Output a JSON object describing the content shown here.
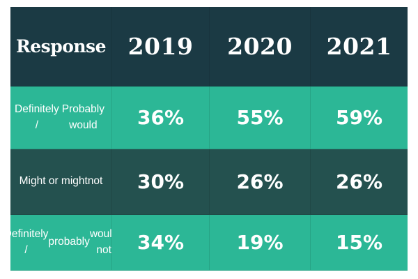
{
  "colors": {
    "header_bg": "#1b3a44",
    "teal_row_bg": "#2cb796",
    "dark_row_bg": "#24514f",
    "text": "#ffffff"
  },
  "chart_data": {
    "type": "table",
    "columns": [
      "Response",
      "2019",
      "2020",
      "2021"
    ],
    "rows": [
      {
        "label": [
          "Definitely /",
          "Probably would"
        ],
        "values": [
          "36%",
          "55%",
          "59%"
        ]
      },
      {
        "label": [
          "Might or might",
          "not"
        ],
        "values": [
          "30%",
          "26%",
          "26%"
        ]
      },
      {
        "label": [
          "Definitely /",
          "probably",
          "would not"
        ],
        "values": [
          "34%",
          "19%",
          "15%"
        ]
      }
    ]
  }
}
